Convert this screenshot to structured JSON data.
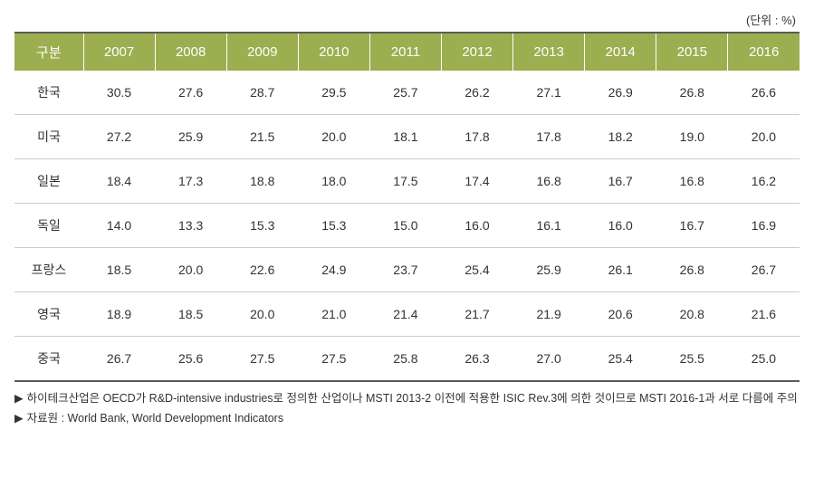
{
  "unit_label": "(단위 : %)",
  "table": {
    "type": "table",
    "header_bg": "#9cae4f",
    "header_color": "#ffffff",
    "border_color": "#cccccc",
    "outer_border_color": "#5a5a5a",
    "columns": [
      "구분",
      "2007",
      "2008",
      "2009",
      "2010",
      "2011",
      "2012",
      "2013",
      "2014",
      "2015",
      "2016"
    ],
    "rows": [
      {
        "label": "한국",
        "values": [
          "30.5",
          "27.6",
          "28.7",
          "29.5",
          "25.7",
          "26.2",
          "27.1",
          "26.9",
          "26.8",
          "26.6"
        ]
      },
      {
        "label": "미국",
        "values": [
          "27.2",
          "25.9",
          "21.5",
          "20.0",
          "18.1",
          "17.8",
          "17.8",
          "18.2",
          "19.0",
          "20.0"
        ]
      },
      {
        "label": "일본",
        "values": [
          "18.4",
          "17.3",
          "18.8",
          "18.0",
          "17.5",
          "17.4",
          "16.8",
          "16.7",
          "16.8",
          "16.2"
        ]
      },
      {
        "label": "독일",
        "values": [
          "14.0",
          "13.3",
          "15.3",
          "15.3",
          "15.0",
          "16.0",
          "16.1",
          "16.0",
          "16.7",
          "16.9"
        ]
      },
      {
        "label": "프랑스",
        "values": [
          "18.5",
          "20.0",
          "22.6",
          "24.9",
          "23.7",
          "25.4",
          "25.9",
          "26.1",
          "26.8",
          "26.7"
        ]
      },
      {
        "label": "영국",
        "values": [
          "18.9",
          "18.5",
          "20.0",
          "21.0",
          "21.4",
          "21.7",
          "21.9",
          "20.6",
          "20.8",
          "21.6"
        ]
      },
      {
        "label": "중국",
        "values": [
          "26.7",
          "25.6",
          "27.5",
          "27.5",
          "25.8",
          "26.3",
          "27.0",
          "25.4",
          "25.5",
          "25.0"
        ]
      }
    ]
  },
  "footnotes": [
    {
      "marker": "▶",
      "text": "하이테크산업은 OECD가 R&D-intensive industries로 정의한 산업이나 MSTI 2013-2 이전에 적용한 ISIC Rev.3에 의한 것이므로 MSTI 2016-1과 서로 다름에 주의"
    },
    {
      "marker": "▶",
      "text": "자료원 : World Bank, World Development Indicators"
    }
  ]
}
